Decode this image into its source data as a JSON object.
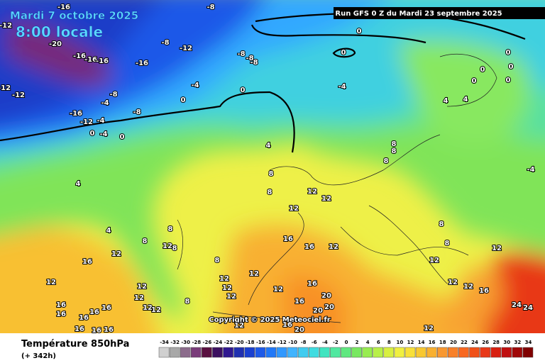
{
  "header": {
    "date": "Mardi 7 octobre 2025",
    "time": "8:00 locale",
    "run": "Run GFS 0 Z du Mardi 23 septembre 2025"
  },
  "copyright": "Copyright © 2025 Meteociel.fr",
  "map": {
    "contour_labels": [
      -12,
      -20,
      -16,
      -8,
      -8,
      -12,
      -16,
      -16,
      -16,
      -16,
      -8,
      -8,
      -8,
      0,
      0,
      -4,
      0,
      -4,
      -12,
      -12,
      -8,
      -4,
      0,
      -16,
      -8,
      -12,
      -4,
      0,
      -4,
      0,
      4,
      0,
      0,
      0,
      0,
      0,
      4,
      4,
      -4,
      8,
      8,
      8,
      8,
      8,
      12,
      12,
      12,
      4,
      4,
      8,
      8,
      12,
      8,
      12,
      16,
      12,
      16,
      16,
      12,
      8,
      12,
      12,
      12,
      12,
      8,
      8,
      12,
      12,
      12,
      12,
      16,
      16,
      12,
      20,
      16,
      20,
      20,
      12,
      12,
      12,
      12,
      16,
      16,
      16,
      16,
      16,
      16,
      16,
      16,
      20,
      16,
      12,
      12,
      24,
      24,
      8
    ]
  },
  "legend": {
    "title": "Température 850hPa",
    "lead": "(+ 342h)",
    "ticks": [
      -34,
      -32,
      -30,
      -28,
      -26,
      -24,
      -22,
      -20,
      -18,
      -16,
      -14,
      -12,
      -10,
      -8,
      -6,
      -4,
      -2,
      0,
      2,
      4,
      6,
      8,
      10,
      12,
      14,
      16,
      18,
      20,
      22,
      24,
      26,
      28,
      30,
      32,
      34
    ],
    "colors": [
      "#d0d0d0",
      "#a8a8a8",
      "#8c6c8c",
      "#7a3c7a",
      "#5a1040",
      "#3c1060",
      "#301890",
      "#2030b0",
      "#1a40d0",
      "#1e5ae8",
      "#2078f8",
      "#3098ff",
      "#40b4ff",
      "#40ccf0",
      "#40dce0",
      "#40e4c0",
      "#50e8a0",
      "#60e880",
      "#78e860",
      "#98ec50",
      "#b8f048",
      "#d8f040",
      "#f0f040",
      "#f8e038",
      "#f8c830",
      "#f8b030",
      "#f89830",
      "#f88028",
      "#f86820",
      "#f05018",
      "#e83818",
      "#d82010",
      "#c01010",
      "#a00808",
      "#800000"
    ]
  }
}
